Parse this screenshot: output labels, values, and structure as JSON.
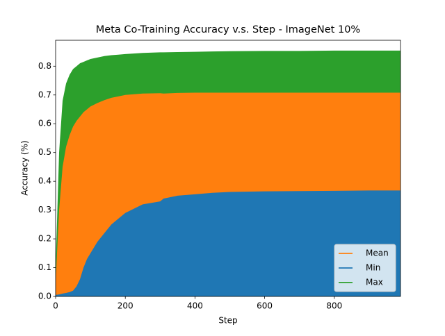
{
  "chart_data": {
    "type": "area",
    "title": "Meta Co-Training Accuracy v.s. Step - ImageNet 10%",
    "x_label": "Step",
    "y_label": "Accuracy (%)",
    "x": [
      0,
      10,
      20,
      30,
      40,
      50,
      60,
      70,
      80,
      90,
      100,
      120,
      140,
      160,
      180,
      200,
      250,
      300,
      310,
      350,
      400,
      450,
      500,
      600,
      700,
      800,
      900,
      990
    ],
    "series": [
      {
        "name": "Mean",
        "color": "#ff7f0e",
        "values": [
          0.05,
          0.3,
          0.45,
          0.52,
          0.56,
          0.59,
          0.61,
          0.625,
          0.64,
          0.65,
          0.66,
          0.672,
          0.682,
          0.69,
          0.695,
          0.7,
          0.705,
          0.706,
          0.705,
          0.707,
          0.708,
          0.708,
          0.708,
          0.708,
          0.708,
          0.708,
          0.708,
          0.708
        ]
      },
      {
        "name": "Min",
        "color": "#1f77b4",
        "values": [
          0.005,
          0.007,
          0.01,
          0.012,
          0.015,
          0.02,
          0.035,
          0.06,
          0.1,
          0.13,
          0.15,
          0.19,
          0.22,
          0.25,
          0.27,
          0.29,
          0.32,
          0.33,
          0.34,
          0.35,
          0.355,
          0.36,
          0.363,
          0.365,
          0.366,
          0.367,
          0.368,
          0.368
        ]
      },
      {
        "name": "Max",
        "color": "#2ca02c",
        "values": [
          0.1,
          0.5,
          0.68,
          0.74,
          0.77,
          0.79,
          0.8,
          0.81,
          0.815,
          0.82,
          0.825,
          0.83,
          0.835,
          0.838,
          0.84,
          0.842,
          0.846,
          0.848,
          0.848,
          0.849,
          0.85,
          0.851,
          0.852,
          0.853,
          0.853,
          0.854,
          0.854,
          0.854
        ]
      }
    ],
    "xlim": [
      0,
      990
    ],
    "ylim": [
      0,
      0.89
    ],
    "xticks": [
      0,
      200,
      400,
      600,
      800
    ],
    "yticks": [
      {
        "value": 0,
        "label": "0.0"
      },
      0.1,
      0.2,
      0.3,
      0.4,
      0.5,
      0.6,
      0.7,
      0.8
    ],
    "legend": "lower right"
  }
}
